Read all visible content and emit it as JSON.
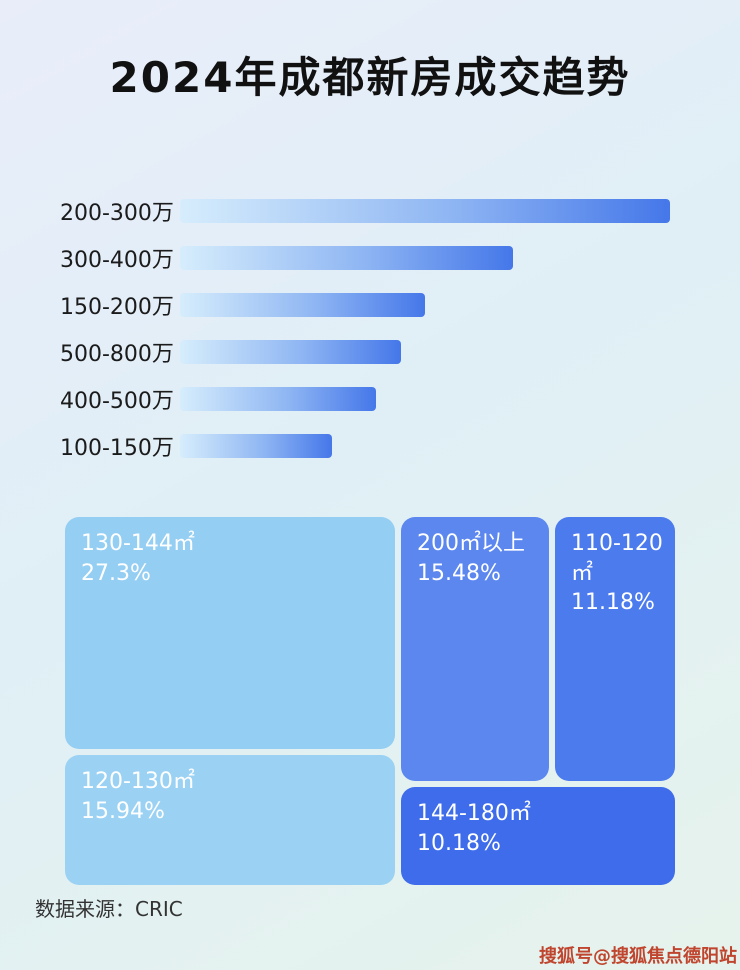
{
  "page": {
    "title": "2024年成都新房成交趋势",
    "source": "数据来源：CRIC",
    "watermark": "搜狐号@搜狐焦点德阳站"
  },
  "chart_data": [
    {
      "type": "bar",
      "orientation": "horizontal",
      "title": "2024年成都新房成交趋势",
      "categories": [
        "200-300万",
        "300-400万",
        "150-200万",
        "500-800万",
        "400-500万",
        "100-150万"
      ],
      "values": [
        100,
        68,
        50,
        45,
        40,
        31
      ],
      "value_unit": "relative bar length as % of longest bar (no numeric axis shown in image)",
      "xlabel": "",
      "ylabel": "",
      "grid": false,
      "legend": "none",
      "bar_gradient": [
        "#d6edfc",
        "#4577e9"
      ]
    },
    {
      "type": "treemap",
      "items": [
        {
          "label": "130-144㎡",
          "pct": "27.3%",
          "value": 27.3,
          "color": "#95cef3"
        },
        {
          "label": "120-130㎡",
          "pct": "15.94%",
          "value": 15.94,
          "color": "#9bd2f4"
        },
        {
          "label": "200㎡以上",
          "pct": "15.48%",
          "value": 15.48,
          "color": "#5b87ef"
        },
        {
          "label": "110-120㎡",
          "pct": "11.18%",
          "value": 11.18,
          "color": "#4c7bee"
        },
        {
          "label": "144-180㎡",
          "pct": "10.18%",
          "value": 10.18,
          "color": "#3e6cea"
        }
      ]
    }
  ]
}
